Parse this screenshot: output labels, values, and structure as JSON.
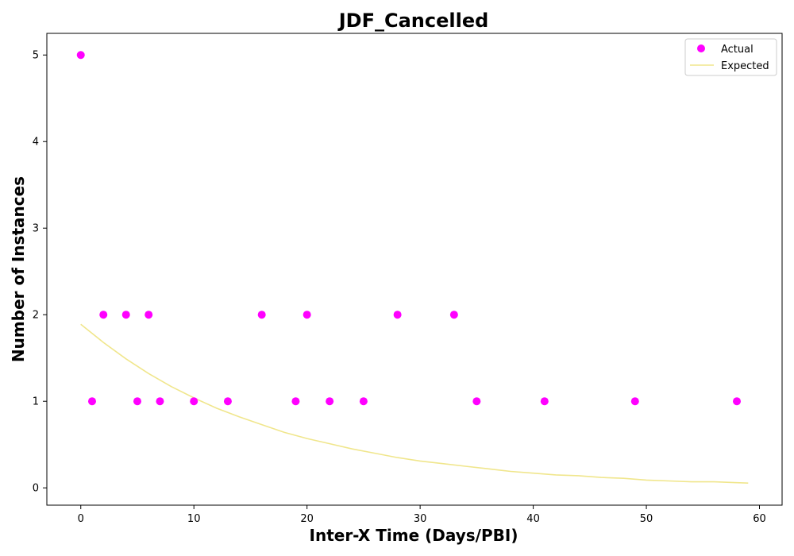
{
  "chart_data": {
    "type": "scatter",
    "title": "JDF_Cancelled",
    "xlabel": "Inter-X Time (Days/PBI)",
    "ylabel": "Number of Instances",
    "xlim": [
      -3,
      62
    ],
    "ylim": [
      -0.2,
      5.25
    ],
    "xticks": [
      0,
      10,
      20,
      30,
      40,
      50,
      60
    ],
    "yticks": [
      0,
      1,
      2,
      3,
      4,
      5
    ],
    "grid": false,
    "legend_position": "top-right",
    "series": [
      {
        "name": "Actual",
        "kind": "scatter",
        "color": "#ff00ff",
        "x": [
          0,
          1,
          2,
          4,
          5,
          6,
          7,
          10,
          13,
          16,
          19,
          20,
          22,
          25,
          28,
          33,
          35,
          41,
          49,
          58
        ],
        "y": [
          5,
          1,
          2,
          2,
          1,
          2,
          1,
          1,
          1,
          2,
          1,
          2,
          1,
          1,
          2,
          2,
          1,
          1,
          1,
          1
        ]
      },
      {
        "name": "Expected",
        "kind": "line",
        "color": "#f0e68c",
        "x": [
          0,
          2,
          4,
          6,
          8,
          10,
          12,
          14,
          16,
          18,
          20,
          22,
          24,
          26,
          28,
          30,
          32,
          34,
          36,
          38,
          40,
          42,
          44,
          46,
          48,
          50,
          52,
          54,
          56,
          58,
          59
        ],
        "y": [
          1.89,
          1.68,
          1.49,
          1.32,
          1.17,
          1.04,
          0.92,
          0.82,
          0.73,
          0.64,
          0.57,
          0.51,
          0.45,
          0.4,
          0.35,
          0.31,
          0.28,
          0.25,
          0.22,
          0.19,
          0.17,
          0.15,
          0.14,
          0.12,
          0.11,
          0.09,
          0.08,
          0.07,
          0.07,
          0.06,
          0.055
        ]
      }
    ]
  }
}
